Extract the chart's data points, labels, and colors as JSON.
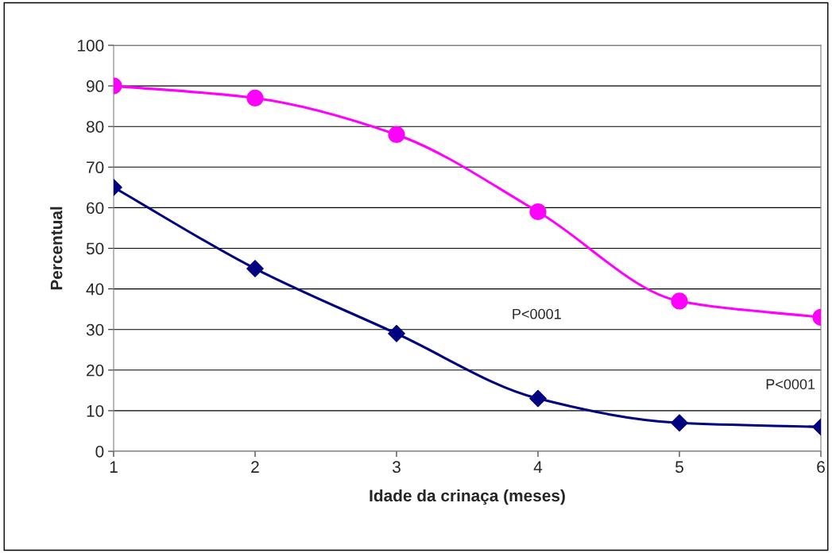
{
  "chart_data": {
    "type": "line",
    "xlabel": "Idade da crinaça (meses)",
    "ylabel": "Percentual",
    "x": [
      1,
      2,
      3,
      4,
      5,
      6
    ],
    "series": [
      {
        "color": "#ff00ff",
        "marker": "circle",
        "values": [
          90,
          87,
          78,
          59,
          37,
          33
        ]
      },
      {
        "color": "#000080",
        "marker": "diamond",
        "values": [
          65,
          45,
          29,
          13,
          7,
          6
        ]
      }
    ],
    "annotations": [
      "P<0001",
      "P<0001"
    ],
    "xlim": [
      1,
      6
    ],
    "xticks": [
      1,
      2,
      3,
      4,
      5,
      6
    ],
    "ylim": [
      0,
      100
    ],
    "yticks": [
      0,
      10,
      20,
      30,
      40,
      50,
      60,
      70,
      80,
      90,
      100
    ],
    "grid": "y",
    "legend": false
  }
}
